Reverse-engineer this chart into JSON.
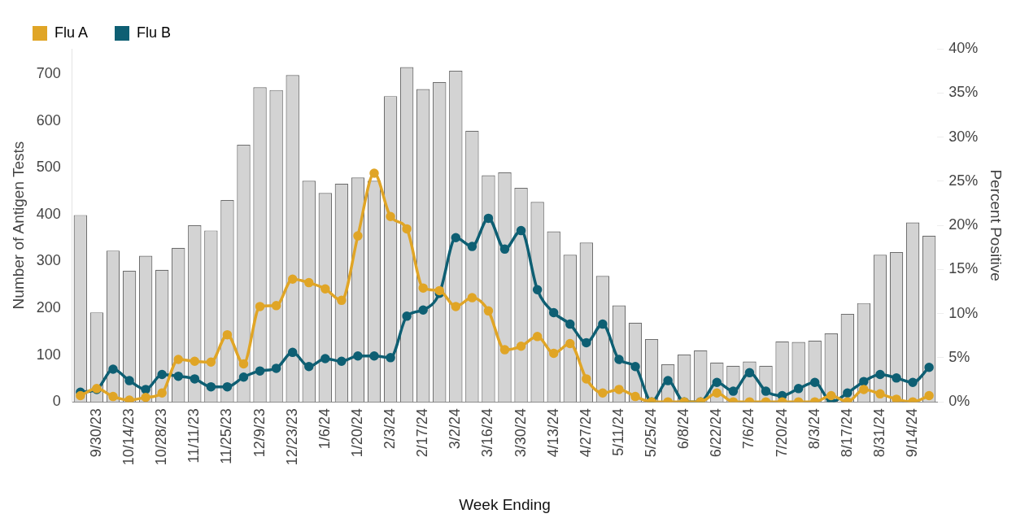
{
  "chart_data": {
    "type": "bar",
    "xlabel": "Week Ending",
    "ylabel": "Number of Antigen Tests",
    "y2label": "Percent Positive",
    "categories": [
      null,
      "9/30/23",
      null,
      "10/14/23",
      null,
      "10/28/23",
      null,
      "11/11/23",
      null,
      "11/25/23",
      null,
      "12/9/23",
      null,
      "12/23/23",
      null,
      "1/6/24",
      null,
      "1/20/24",
      null,
      "2/3/24",
      null,
      "2/17/24",
      null,
      "3/2/24",
      null,
      "3/16/24",
      null,
      "3/30/24",
      null,
      "4/13/24",
      null,
      "4/27/24",
      null,
      "5/11/24",
      null,
      "5/25/24",
      null,
      "6/8/24",
      null,
      "6/22/24",
      null,
      "7/6/24",
      null,
      "7/20/24",
      null,
      "8/3/24",
      null,
      "8/17/24",
      null,
      "8/31/24",
      null,
      "9/14/24",
      null
    ],
    "series": [
      {
        "color": "#d3d3d3",
        "values": [
          399,
          191,
          323,
          280,
          312,
          282,
          329,
          377,
          366,
          431,
          549,
          672,
          666,
          698,
          472,
          446,
          466,
          479,
          472,
          653,
          715,
          668,
          683,
          707,
          579,
          484,
          490,
          457,
          427,
          364,
          314,
          340,
          269,
          206,
          169,
          134,
          80,
          101,
          110,
          84,
          77,
          86,
          77,
          129,
          128,
          131,
          146,
          188,
          211,
          314,
          320,
          383,
          355
        ]
      },
      {
        "type": "line",
        "name": "Flu A",
        "color": "#e0a526",
        "axis": "y2",
        "values": [
          0.7,
          1.5,
          0.6,
          0.2,
          0.5,
          1.0,
          4.8,
          4.6,
          4.5,
          7.6,
          4.3,
          10.8,
          10.9,
          13.9,
          13.5,
          12.8,
          11.5,
          18.8,
          25.9,
          21.0,
          19.6,
          12.9,
          12.6,
          10.8,
          11.8,
          10.3,
          5.9,
          6.3,
          7.4,
          5.5,
          6.6,
          2.6,
          1.0,
          1.4,
          0.6,
          0,
          0,
          0,
          0,
          1.0,
          0,
          0,
          0,
          0,
          0,
          0,
          0.7,
          0,
          1.4,
          0.9,
          0.3,
          0,
          0.7
        ]
      },
      {
        "type": "line",
        "name": "Flu B",
        "color": "#0e5f73",
        "axis": "y2",
        "values": [
          1.1,
          1.4,
          3.7,
          2.4,
          1.4,
          3.1,
          2.9,
          2.6,
          1.7,
          1.7,
          2.8,
          3.5,
          3.8,
          5.6,
          4.0,
          4.9,
          4.6,
          5.2,
          5.2,
          5.0,
          9.7,
          10.4,
          12.3,
          18.6,
          17.6,
          20.8,
          17.3,
          19.4,
          12.7,
          10.1,
          8.8,
          6.7,
          8.8,
          4.8,
          4.0,
          0,
          2.4,
          0,
          0,
          2.2,
          1.2,
          3.3,
          1.2,
          0.7,
          1.5,
          2.2,
          0,
          1.0,
          2.3,
          3.1,
          2.7,
          2.2,
          3.9
        ]
      }
    ],
    "ylim": [
      0,
      754
    ],
    "yticks": [
      0,
      100,
      200,
      300,
      400,
      500,
      600,
      700
    ],
    "y2lim": [
      0,
      40
    ],
    "y2ticks": [
      {
        "value": 0,
        "label": "0%"
      },
      {
        "value": 5,
        "label": "5%"
      },
      {
        "value": 10,
        "label": "10%"
      },
      {
        "value": 15,
        "label": "15%"
      },
      {
        "value": 20,
        "label": "20%"
      },
      {
        "value": 25,
        "label": "25%"
      },
      {
        "value": 30,
        "label": "30%"
      },
      {
        "value": 35,
        "label": "35%"
      },
      {
        "value": 40,
        "label": "40%"
      }
    ],
    "marker": "circle",
    "line_style": "solid",
    "legend": "top left",
    "grid": false
  }
}
